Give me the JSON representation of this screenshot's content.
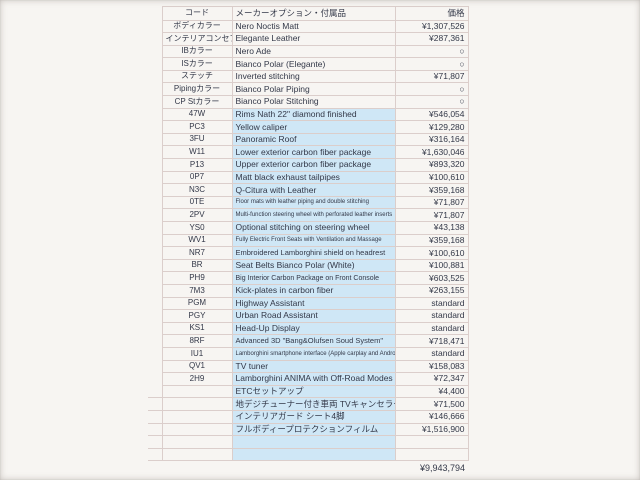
{
  "table": {
    "headers": [
      "コード",
      "メーカーオプション・付属品",
      "価格"
    ],
    "rows": [
      {
        "code": "ボディカラー",
        "name": "Nero Noctis Matt",
        "price": "¥1,307,526"
      },
      {
        "code": "インテリアコンセプト",
        "name": "Elegante Leather",
        "price": "¥287,361",
        "csz": 1
      },
      {
        "code": "IBカラー",
        "name": "Nero Ade",
        "price": "○"
      },
      {
        "code": "ISカラー",
        "name": "Bianco Polar (Elegante)",
        "price": "○"
      },
      {
        "code": "ステッチ",
        "name": "Inverted stitching",
        "price": "¥71,807"
      },
      {
        "code": "Pipingカラー",
        "name": "Bianco Polar Piping",
        "price": "○"
      },
      {
        "code": "CP Stカラー",
        "name": "Bianco Polar Stitching",
        "price": "○"
      },
      {
        "code": "47W",
        "name": "Rims Nath 22\" diamond finished",
        "price": "¥546,054",
        "hl": 1
      },
      {
        "code": "PC3",
        "name": "Yellow caliper",
        "price": "¥129,280",
        "hl": 1
      },
      {
        "code": "3FU",
        "name": "Panoramic Roof",
        "price": "¥316,164",
        "hl": 1
      },
      {
        "code": "W11",
        "name": "Lower exterior carbon fiber package",
        "price": "¥1,630,046",
        "hl": 1
      },
      {
        "code": "P13",
        "name": "Upper exterior carbon fiber package",
        "price": "¥893,320",
        "hl": 1
      },
      {
        "code": "0P7",
        "name": "Matt black exhaust tailpipes",
        "price": "¥100,610",
        "hl": 1
      },
      {
        "code": "N3C",
        "name": "Q-Citura with Leather",
        "price": "¥359,168",
        "hl": 1
      },
      {
        "code": "0TE",
        "name": "Floor mats with leather piping and double stitching",
        "price": "¥71,807",
        "hl": 1,
        "sz": "s3"
      },
      {
        "code": "2PV",
        "name": "Multi-function steering wheel with perforated leather inserts",
        "price": "¥71,807",
        "hl": 1,
        "sz": "s3"
      },
      {
        "code": "YS0",
        "name": "Optional stitching on steering wheel",
        "price": "¥43,138",
        "hl": 1
      },
      {
        "code": "WV1",
        "name": "Fully Electric Front Seats with Ventilation and Massage",
        "price": "¥359,168",
        "hl": 1,
        "sz": "s3"
      },
      {
        "code": "NR7",
        "name": "Embroidered Lamborghini shield on headrest",
        "price": "¥100,610",
        "hl": 1,
        "sz": "s1"
      },
      {
        "code": "BR",
        "name": "Seat Belts Bianco Polar (White)",
        "price": "¥100,881",
        "hl": 1
      },
      {
        "code": "PH9",
        "name": "Big Interior Carbon Package on Front Console",
        "price": "¥603,525",
        "hl": 1,
        "sz": "s2"
      },
      {
        "code": "7M3",
        "name": "Kick-plates in carbon fiber",
        "price": "¥263,155",
        "hl": 1
      },
      {
        "code": "PGM",
        "name": "Highway Assistant",
        "price": "standard",
        "hl": 1
      },
      {
        "code": "PGY",
        "name": "Urban Road Assistant",
        "price": "standard",
        "hl": 1
      },
      {
        "code": "KS1",
        "name": "Head-Up Display",
        "price": "standard",
        "hl": 1
      },
      {
        "code": "8RF",
        "name": "Advanced 3D \"Bang&Olufsen Soud System\"",
        "price": "¥718,471",
        "hl": 1,
        "sz": "s1"
      },
      {
        "code": "IU1",
        "name": "Lamborghini smartphone interface (Apple carplay and Android auto)",
        "price": "standard",
        "hl": 1,
        "sz": "s3"
      },
      {
        "code": "QV1",
        "name": "TV tuner",
        "price": "¥158,083",
        "hl": 1
      },
      {
        "code": "2H9",
        "name": "Lamborghini ANIMA with Off-Road Modes",
        "price": "¥72,347",
        "hl": 1
      },
      {
        "code": "",
        "name": "ETCセットアップ",
        "price": "¥4,400",
        "hl": 1,
        "ext": 1
      },
      {
        "code": "",
        "name": "地デジチューナー付き車両 TVキャンセラー",
        "price": "¥71,500",
        "hl": 1,
        "ext": 1
      },
      {
        "code": "",
        "name": "インテリアガード シート4脚",
        "price": "¥146,666",
        "hl": 1,
        "ext": 1
      },
      {
        "code": "",
        "name": "フルボディープロテクションフィルム",
        "price": "¥1,516,900",
        "hl": 1,
        "ext": 1
      },
      {
        "code": "",
        "name": "",
        "price": "",
        "hl": 1,
        "ext": 1,
        "blank": 1
      },
      {
        "code": "",
        "name": "",
        "price": "",
        "hl": 1,
        "ext": 1,
        "blank": 1
      }
    ],
    "total": "¥9,943,794",
    "colors": {
      "highlight": "#cfe7f6",
      "grid": "#dbcecb",
      "text": "#333848",
      "background": "#f7f5f2"
    }
  }
}
